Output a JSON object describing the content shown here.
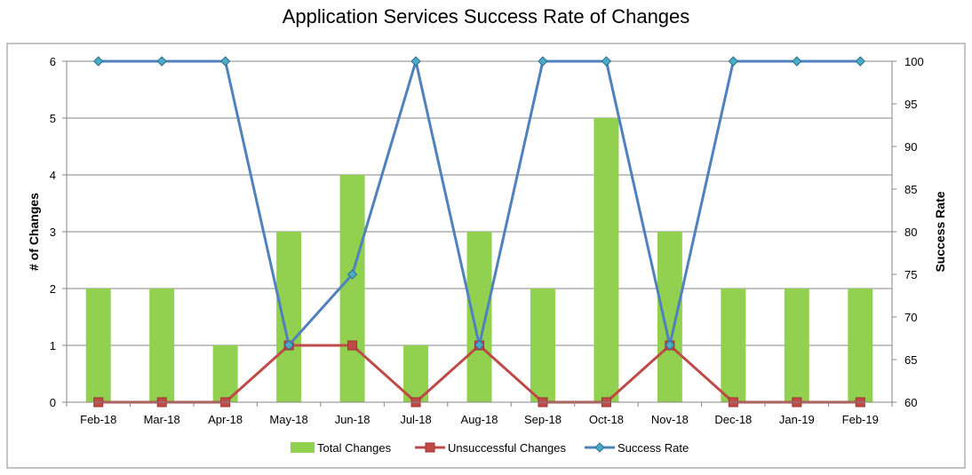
{
  "chart_data": {
    "type": "bar",
    "title": "Application Services Success Rate of Changes",
    "categories": [
      "Feb-18",
      "Mar-18",
      "Apr-18",
      "May-18",
      "Jun-18",
      "Jul-18",
      "Aug-18",
      "Sep-18",
      "Oct-18",
      "Nov-18",
      "Dec-18",
      "Jan-19",
      "Feb-19"
    ],
    "series": [
      {
        "name": "Total Changes",
        "type": "bar",
        "axis": "left",
        "color": "#92d050",
        "values": [
          2,
          2,
          1,
          3,
          4,
          1,
          3,
          2,
          5,
          3,
          2,
          2,
          2
        ]
      },
      {
        "name": "Unsuccessful Changes",
        "type": "line",
        "axis": "left",
        "color": "#be4b48",
        "marker": "square",
        "values": [
          0,
          0,
          0,
          1,
          1,
          0,
          1,
          0,
          0,
          1,
          0,
          0,
          0
        ]
      },
      {
        "name": "Success Rate",
        "type": "line",
        "axis": "right",
        "color": "#4f81bd",
        "marker": "diamond",
        "values": [
          100,
          100,
          100,
          66.7,
          75,
          100,
          66.7,
          100,
          100,
          66.7,
          100,
          100,
          100
        ]
      }
    ],
    "ylabel": "# of Changes",
    "ylim": [
      0,
      6
    ],
    "yticks": [
      "0",
      "1",
      "2",
      "3",
      "4",
      "5",
      "6"
    ],
    "y2label": "Success Rate",
    "y2lim": [
      60,
      100
    ],
    "y2ticks": [
      "60",
      "65",
      "70",
      "75",
      "80",
      "85",
      "90",
      "95",
      "100"
    ],
    "grid": true,
    "legend": "bottom"
  }
}
